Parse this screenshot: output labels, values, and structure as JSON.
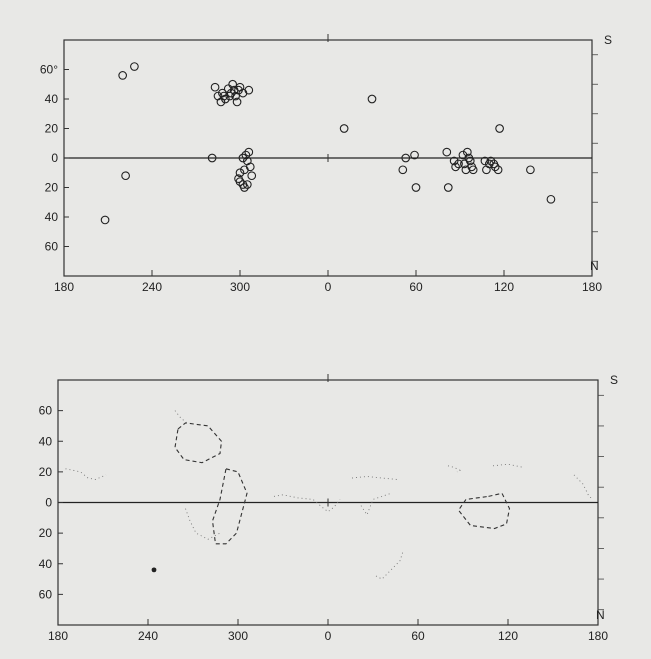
{
  "chart_data": [
    {
      "type": "scatter",
      "x_ticks": [
        "180",
        "240",
        "300",
        "0",
        "60",
        "120",
        "180"
      ],
      "x_tick_values": [
        180,
        240,
        300,
        360,
        420,
        480,
        540
      ],
      "y_ticks": [
        "60°",
        "40",
        "20",
        "0",
        "20",
        "40",
        "60"
      ],
      "y_tick_values": [
        60,
        40,
        20,
        0,
        -20,
        -40,
        -60
      ],
      "xlim": [
        180,
        540
      ],
      "ylim": [
        -80,
        80
      ],
      "right_labels": {
        "top": "S",
        "bottom": "N"
      },
      "series": [
        {
          "points": [
            [
              208,
              -42
            ],
            [
              222,
              -12
            ],
            [
              220,
              56
            ],
            [
              228,
              62
            ],
            [
              281,
              0
            ],
            [
              283,
              48
            ],
            [
              285,
              42
            ],
            [
              287,
              38
            ],
            [
              288,
              44
            ],
            [
              289,
              42
            ],
            [
              290,
              40
            ],
            [
              292,
              47
            ],
            [
              293,
              42
            ],
            [
              294,
              44
            ],
            [
              295,
              50
            ],
            [
              296,
              46
            ],
            [
              297,
              42
            ],
            [
              298,
              38
            ],
            [
              299,
              46
            ],
            [
              300,
              48
            ],
            [
              302,
              44
            ],
            [
              306,
              46
            ],
            [
              302,
              0
            ],
            [
              304,
              2
            ],
            [
              305,
              -2
            ],
            [
              306,
              4
            ],
            [
              307,
              -6
            ],
            [
              303,
              -8
            ],
            [
              300,
              -10
            ],
            [
              299,
              -14
            ],
            [
              300,
              -16
            ],
            [
              302,
              -18
            ],
            [
              303,
              -20
            ],
            [
              305,
              -18
            ],
            [
              308,
              -12
            ],
            [
              371,
              20
            ],
            [
              390,
              40
            ],
            [
              411,
              -8
            ],
            [
              413,
              0
            ],
            [
              419,
              2
            ],
            [
              420,
              -20
            ],
            [
              441,
              4
            ],
            [
              442,
              -20
            ],
            [
              446,
              -2
            ],
            [
              447,
              -6
            ],
            [
              449,
              -4
            ],
            [
              452,
              2
            ],
            [
              453,
              -4
            ],
            [
              454,
              -8
            ],
            [
              455,
              4
            ],
            [
              456,
              0
            ],
            [
              457,
              -2
            ],
            [
              458,
              -6
            ],
            [
              459,
              -8
            ],
            [
              467,
              -2
            ],
            [
              468,
              -8
            ],
            [
              470,
              -4
            ],
            [
              471,
              -2
            ],
            [
              473,
              -4
            ],
            [
              474,
              -6
            ],
            [
              476,
              -8
            ],
            [
              477,
              20
            ],
            [
              498,
              -8
            ],
            [
              512,
              -28
            ]
          ]
        }
      ]
    },
    {
      "type": "line",
      "x_ticks": [
        "180",
        "240",
        "300",
        "0",
        "60",
        "120",
        "180"
      ],
      "x_tick_values": [
        180,
        240,
        300,
        360,
        420,
        480,
        540
      ],
      "y_ticks": [
        "60",
        "40",
        "20",
        "0",
        "20",
        "40",
        "60"
      ],
      "y_tick_values": [
        60,
        40,
        20,
        0,
        -20,
        -40,
        -60
      ],
      "xlim": [
        180,
        540
      ],
      "ylim": [
        -80,
        80
      ],
      "right_labels": {
        "top": "S",
        "bottom": "N"
      },
      "dashed_contours": [
        [
          [
            260,
            48
          ],
          [
            265,
            52
          ],
          [
            280,
            50
          ],
          [
            289,
            40
          ],
          [
            288,
            32
          ],
          [
            276,
            26
          ],
          [
            264,
            28
          ],
          [
            258,
            36
          ],
          [
            260,
            48
          ]
        ],
        [
          [
            292,
            22
          ],
          [
            300,
            20
          ],
          [
            306,
            6
          ],
          [
            299,
            -20
          ],
          [
            292,
            -27
          ],
          [
            285,
            -27
          ],
          [
            283,
            -12
          ],
          [
            288,
            2
          ],
          [
            292,
            22
          ]
        ],
        [
          [
            467,
            4
          ],
          [
            476,
            6
          ],
          [
            481,
            -4
          ],
          [
            479,
            -14
          ],
          [
            471,
            -17
          ],
          [
            455,
            -15
          ],
          [
            447,
            -5
          ],
          [
            452,
            2
          ],
          [
            467,
            4
          ]
        ]
      ],
      "dotted_traces": [
        [
          [
            185,
            22
          ],
          [
            190,
            21
          ],
          [
            195,
            20
          ],
          [
            200,
            16
          ],
          [
            205,
            15
          ],
          [
            212,
            18
          ]
        ],
        [
          [
            258,
            60
          ],
          [
            262,
            55
          ],
          [
            266,
            52
          ]
        ],
        [
          [
            265,
            -4
          ],
          [
            268,
            -12
          ],
          [
            272,
            -20
          ],
          [
            280,
            -24
          ],
          [
            288,
            -20
          ]
        ],
        [
          [
            324,
            4
          ],
          [
            330,
            5
          ],
          [
            340,
            3
          ],
          [
            350,
            2
          ],
          [
            356,
            -3
          ],
          [
            360,
            -6
          ],
          [
            364,
            -3
          ],
          [
            368,
            2
          ]
        ],
        [
          [
            376,
            16
          ],
          [
            386,
            17
          ],
          [
            396,
            16
          ],
          [
            406,
            15
          ]
        ],
        [
          [
            382,
            -2
          ],
          [
            386,
            -8
          ],
          [
            390,
            2
          ],
          [
            396,
            4
          ],
          [
            402,
            6
          ]
        ],
        [
          [
            392,
            -48
          ],
          [
            396,
            -50
          ],
          [
            402,
            -44
          ],
          [
            408,
            -38
          ],
          [
            410,
            -32
          ]
        ],
        [
          [
            440,
            24
          ],
          [
            444,
            23
          ],
          [
            448,
            21
          ],
          [
            446,
            20
          ]
        ],
        [
          [
            470,
            24
          ],
          [
            480,
            25
          ],
          [
            490,
            23
          ]
        ],
        [
          [
            524,
            18
          ],
          [
            530,
            12
          ],
          [
            534,
            4
          ],
          [
            537,
            2
          ]
        ]
      ],
      "dot_marker": [
        [
          244,
          -44
        ]
      ]
    }
  ]
}
